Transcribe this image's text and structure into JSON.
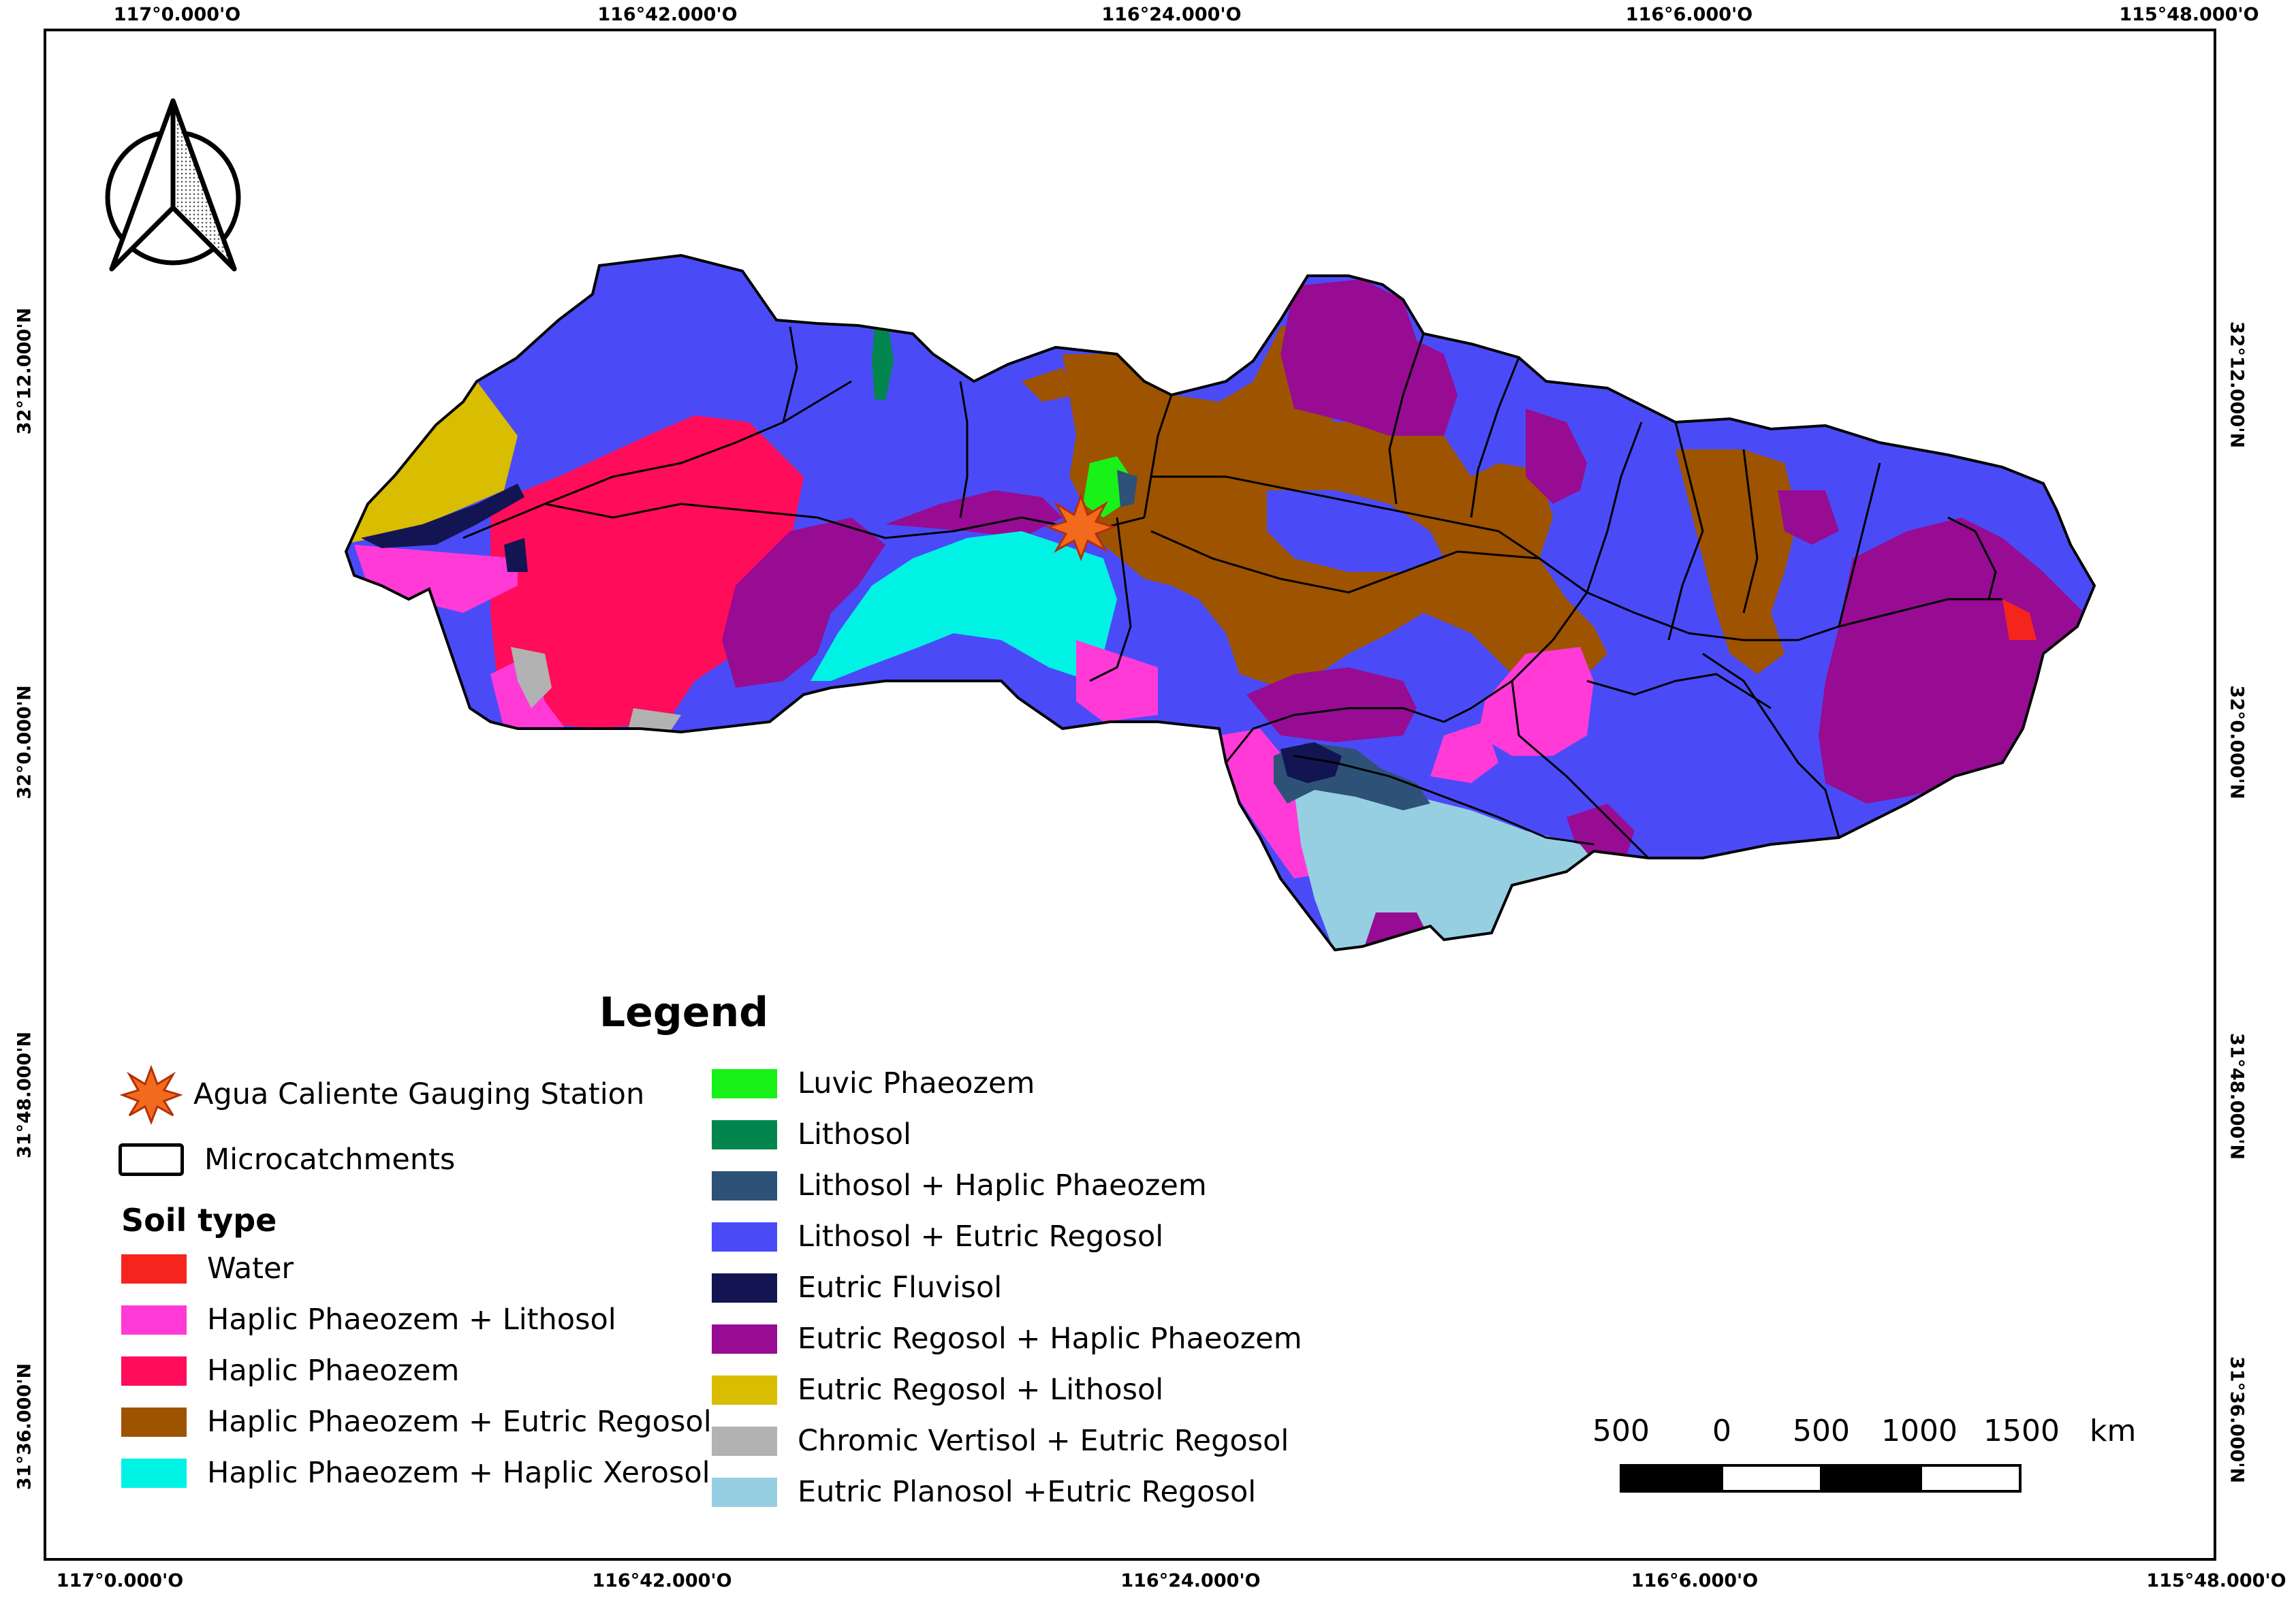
{
  "coordinates": {
    "top": [
      "117°0.000'O",
      "116°42.000'O",
      "116°24.000'O",
      "116°6.000'O",
      "115°48.000'O"
    ],
    "bottom": [
      "117°0.000'O",
      "116°42.000'O",
      "116°24.000'O",
      "116°6.000'O",
      "115°48.000'O"
    ],
    "left": [
      "32°12.000'N",
      "32°0.000'N",
      "31°48.000'N",
      "31°36.000'N"
    ],
    "right": [
      "32°12.000'N",
      "32°0.000'N",
      "31°48.000'N",
      "31°36.000'N"
    ]
  },
  "legend": {
    "title": "Legend",
    "station_label": "Agua Caliente Gauging Station",
    "microcatchments_label": "Microcatchments",
    "soil_type_heading": "Soil type",
    "soil_types": [
      {
        "label": "Water",
        "color": "#f5251e"
      },
      {
        "label": "Haplic Phaeozem + Lithosol",
        "color": "#ff3ad7"
      },
      {
        "label": "Haplic Phaeozem",
        "color": "#ff0c5a"
      },
      {
        "label": "Haplic Phaeozem + Eutric Regosol",
        "color": "#9e5300"
      },
      {
        "label": "Haplic Phaeozem + Haplic Xerosol",
        "color": "#00f2e5"
      },
      {
        "label": "Luvic Phaeozem",
        "color": "#18f218"
      },
      {
        "label": "Lithosol",
        "color": "#03864d"
      },
      {
        "label": "Lithosol + Haplic Phaeozem",
        "color": "#2e5277"
      },
      {
        "label": "Lithosol + Eutric Regosol",
        "color": "#4a4bf7"
      },
      {
        "label": "Eutric Fluvisol",
        "color": "#131553"
      },
      {
        "label": "Eutric Regosol + Haplic Phaeozem",
        "color": "#970c92"
      },
      {
        "label": "Eutric Regosol + Lithosol",
        "color": "#d8bd00"
      },
      {
        "label": "Chromic Vertisol + Eutric Regosol",
        "color": "#b2b2b2"
      },
      {
        "label": "Eutric Planosol +Eutric Regosol",
        "color": "#96cfe2"
      }
    ]
  },
  "scale_bar": {
    "labels": [
      "500",
      "0",
      "500",
      "1000",
      "1500"
    ],
    "unit": "km"
  },
  "icons": {
    "north_arrow": "north-arrow-icon",
    "station": "starburst-icon"
  }
}
